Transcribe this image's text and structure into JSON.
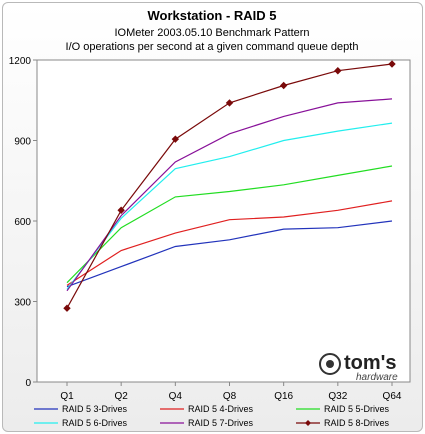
{
  "chart_data": {
    "type": "line",
    "title": "Workstation - RAID 5",
    "subtitle_lines": [
      "IOMeter 2003.05.10  Benchmark Pattern",
      "I/O operations per second at a given command queue depth"
    ],
    "categories": [
      "Q1",
      "Q2",
      "Q4",
      "Q8",
      "Q16",
      "Q32",
      "Q64"
    ],
    "ylim": [
      0,
      1200
    ],
    "yticks": [
      0,
      300,
      600,
      900,
      1200
    ],
    "grid": false,
    "legend_position": "bottom",
    "series": [
      {
        "name": "RAID 5 3-Drives",
        "color": "#2233bb",
        "values": [
          355,
          430,
          505,
          530,
          570,
          575,
          600
        ],
        "marker": "none"
      },
      {
        "name": "RAID 5 4-Drives",
        "color": "#e02020",
        "values": [
          360,
          490,
          555,
          605,
          615,
          640,
          675
        ],
        "marker": "none"
      },
      {
        "name": "RAID 5 5-Drives",
        "color": "#22dd22",
        "values": [
          370,
          575,
          690,
          710,
          735,
          770,
          805
        ],
        "marker": "none"
      },
      {
        "name": "RAID 5 6-Drives",
        "color": "#22eeee",
        "values": [
          345,
          610,
          795,
          840,
          900,
          935,
          965
        ],
        "marker": "none"
      },
      {
        "name": "RAID 5 7-Drives",
        "color": "#881199",
        "values": [
          340,
          620,
          820,
          925,
          990,
          1040,
          1055
        ],
        "marker": "none"
      },
      {
        "name": "RAID 5 8-Drives",
        "color": "#7a0a0a",
        "values": [
          275,
          640,
          905,
          1040,
          1105,
          1160,
          1185
        ],
        "marker": "diamond"
      }
    ]
  },
  "logo": {
    "main": "tom's",
    "sub": "hardware"
  }
}
